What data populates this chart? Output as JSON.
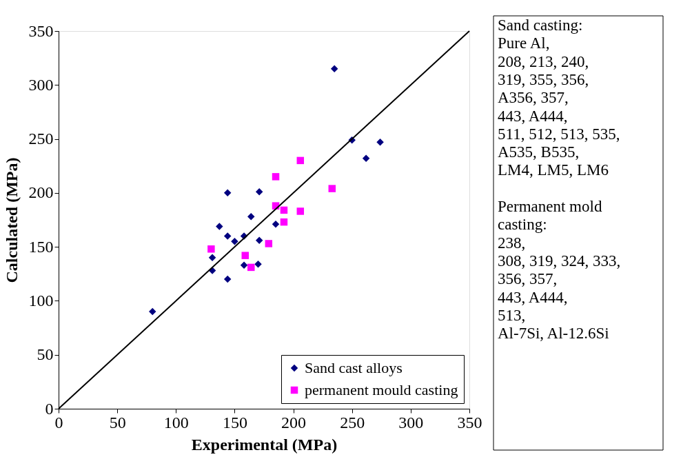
{
  "chart_data": {
    "type": "scatter",
    "xlabel": "Experimental (MPa)",
    "ylabel": "Calculated (MPa)",
    "xlim": [
      0,
      350
    ],
    "ylim": [
      0,
      350
    ],
    "xticks": [
      0,
      50,
      100,
      150,
      200,
      250,
      300,
      350
    ],
    "yticks": [
      0,
      50,
      100,
      150,
      200,
      250,
      300,
      350
    ],
    "grid": false,
    "legend": "bottom right",
    "series": [
      {
        "name": "Sand cast alloys",
        "color": "#000080",
        "marker": "diamond",
        "x": [
          235,
          250,
          274,
          262,
          144,
          171,
          164,
          137,
          144,
          150,
          158,
          185,
          171,
          131,
          131,
          144,
          158,
          170,
          80
        ],
        "values": [
          315,
          249,
          247,
          232,
          200,
          201,
          178,
          169,
          160,
          155,
          160,
          171,
          156,
          140,
          128,
          120,
          133,
          134,
          90
        ]
      },
      {
        "name": "permanent mould casting",
        "color": "#ff00ff",
        "marker": "square",
        "x": [
          206,
          185,
          233,
          185,
          192,
          206,
          192,
          179,
          130,
          159,
          164
        ],
        "values": [
          230,
          215,
          204,
          188,
          184,
          183,
          173,
          153,
          148,
          142,
          131
        ]
      },
      {
        "type": "line",
        "color": "#000000",
        "x": [
          0,
          350
        ],
        "values": [
          0,
          350
        ]
      }
    ],
    "annotations": [
      "Sand casting:\nPure Al,\n208, 213, 240,\n319, 355, 356,\nA356, 357,\n443, A444,\n511, 512, 513, 535,\nA535, B535,\nLM4, LM5, LM6",
      "Permanent mold\ncasting:\n238,\n308, 319, 324, 333,\n356, 357,\n443, A444,\n513,\nAl-7Si, Al-12.6Si"
    ]
  }
}
